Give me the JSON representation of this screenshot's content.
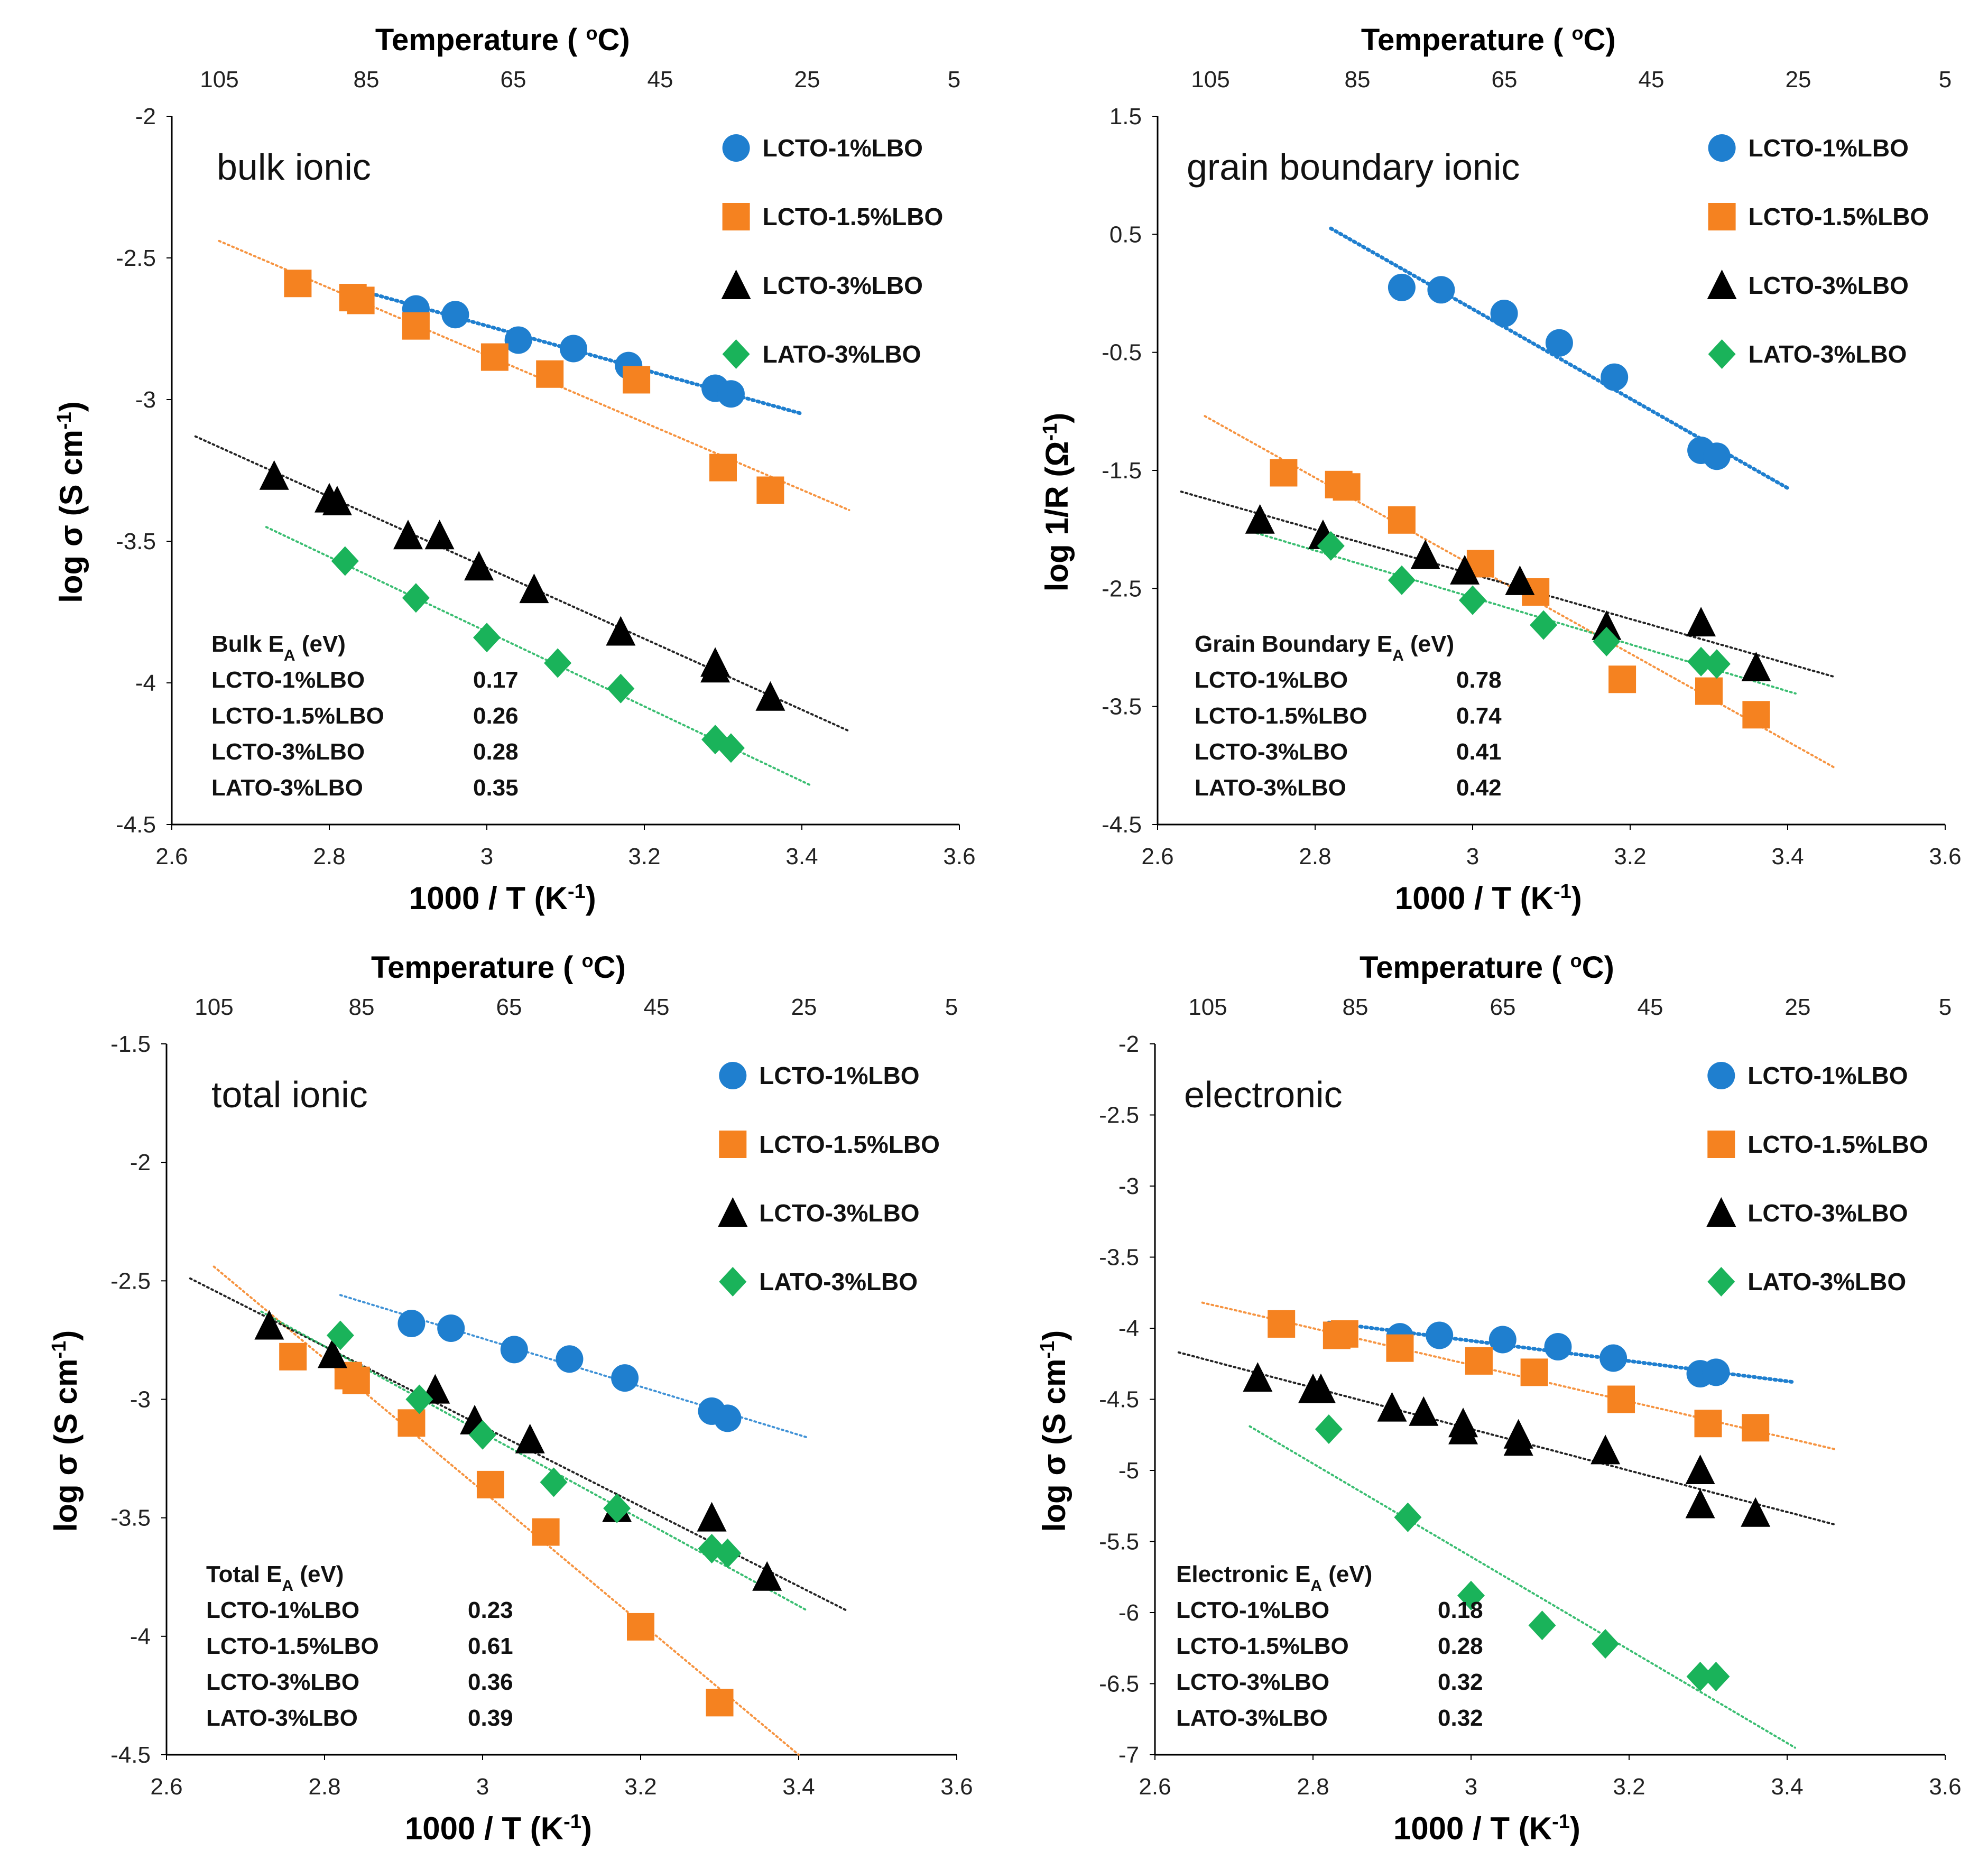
{
  "colors": {
    "LCTO-1%LBO": "#1f7fcf",
    "LCTO-1.5%LBO": "#f58220",
    "LCTO-3%LBO": "#000000",
    "LATO-3%LBO": "#1ab35a",
    "axis": "#000000"
  },
  "chart_data": [
    {
      "type": "scatter",
      "panel_label": "bulk ionic",
      "xlabel": "1000 / T (K",
      "xlabel_sup": "-1",
      "xlabel_close": ")",
      "ylabel": "log σ (S cm",
      "ylabel_sup": "-1",
      "ylabel_close": ")",
      "toplabel": "Temperature ( ",
      "toplabel_sup": "o",
      "toplabel_close": "C)",
      "xlim": [
        2.6,
        3.6
      ],
      "ylim": [
        -4.5,
        -2
      ],
      "xticks": [
        "2.6",
        "2.8",
        "3",
        "3.2",
        "3.4",
        "3.6"
      ],
      "yticks": [
        "-4.5",
        "-4",
        "-3.5",
        "-3",
        "-2.5",
        "-2"
      ],
      "top_ticks": [
        "105",
        "85",
        "65",
        "45",
        "25",
        "5"
      ],
      "series": [
        {
          "name": "LCTO-1%LBO",
          "marker": "circle",
          "points": [
            [
              2.91,
              -2.68
            ],
            [
              2.96,
              -2.7
            ],
            [
              3.04,
              -2.79
            ],
            [
              3.11,
              -2.82
            ],
            [
              3.18,
              -2.88
            ],
            [
              3.29,
              -2.96
            ],
            [
              3.31,
              -2.98
            ]
          ],
          "fit": [
            [
              2.82,
              -2.6
            ],
            [
              3.4,
              -3.05
            ]
          ],
          "fit_style": "dense"
        },
        {
          "name": "LCTO-1.5%LBO",
          "marker": "square",
          "points": [
            [
              2.76,
              -2.59
            ],
            [
              2.83,
              -2.64
            ],
            [
              2.84,
              -2.65
            ],
            [
              2.91,
              -2.74
            ],
            [
              3.01,
              -2.85
            ],
            [
              3.08,
              -2.91
            ],
            [
              3.19,
              -2.93
            ],
            [
              3.3,
              -3.24
            ],
            [
              3.36,
              -3.32
            ]
          ],
          "fit": [
            [
              2.66,
              -2.44
            ],
            [
              3.46,
              -3.39
            ]
          ],
          "fit_style": "light"
        },
        {
          "name": "LCTO-3%LBO",
          "marker": "triangle",
          "points": [
            [
              2.73,
              -3.27
            ],
            [
              2.8,
              -3.35
            ],
            [
              2.81,
              -3.36
            ],
            [
              2.9,
              -3.48
            ],
            [
              2.94,
              -3.48
            ],
            [
              2.99,
              -3.59
            ],
            [
              3.06,
              -3.67
            ],
            [
              3.17,
              -3.82
            ],
            [
              3.29,
              -3.93
            ],
            [
              3.29,
              -3.95
            ],
            [
              3.36,
              -4.05
            ]
          ],
          "fit": [
            [
              2.63,
              -3.13
            ],
            [
              3.46,
              -4.17
            ]
          ],
          "fit_style": "light"
        },
        {
          "name": "LATO-3%LBO",
          "marker": "diamond",
          "points": [
            [
              2.82,
              -3.57
            ],
            [
              2.91,
              -3.7
            ],
            [
              3.0,
              -3.84
            ],
            [
              3.09,
              -3.93
            ],
            [
              3.17,
              -4.02
            ],
            [
              3.29,
              -4.2
            ],
            [
              3.31,
              -4.23
            ]
          ],
          "fit": [
            [
              2.72,
              -3.45
            ],
            [
              3.41,
              -4.36
            ]
          ],
          "fit_style": "light"
        }
      ],
      "ea_table": {
        "header": "Bulk E",
        "header_sub": "A",
        "header_unit": " (eV)",
        "rows": [
          {
            "name": "LCTO-1%LBO",
            "value": "0.17"
          },
          {
            "name": "LCTO-1.5%LBO",
            "value": "0.26"
          },
          {
            "name": "LCTO-3%LBO",
            "value": "0.28"
          },
          {
            "name": "LATO-3%LBO",
            "value": "0.35"
          }
        ]
      }
    },
    {
      "type": "scatter",
      "panel_label": "grain boundary ionic",
      "xlabel": "1000 / T (K",
      "xlabel_sup": "-1",
      "xlabel_close": ")",
      "ylabel": "log 1/R (Ω",
      "ylabel_sup": "-1",
      "ylabel_close": ")",
      "toplabel": "Temperature ( ",
      "toplabel_sup": "o",
      "toplabel_close": "C)",
      "xlim": [
        2.6,
        3.6
      ],
      "ylim": [
        -4.5,
        1.5
      ],
      "xticks": [
        "2.6",
        "2.8",
        "3",
        "3.2",
        "3.4",
        "3.6"
      ],
      "yticks": [
        "-4.5",
        "-3.5",
        "-2.5",
        "-1.5",
        "-0.5",
        "0.5",
        "1.5"
      ],
      "top_ticks": [
        "105",
        "85",
        "65",
        "45",
        "25",
        "5"
      ],
      "series": [
        {
          "name": "LCTO-1%LBO",
          "marker": "circle",
          "points": [
            [
              2.91,
              0.05
            ],
            [
              2.96,
              0.03
            ],
            [
              3.04,
              -0.17
            ],
            [
              3.11,
              -0.42
            ],
            [
              3.18,
              -0.71
            ],
            [
              3.29,
              -1.33
            ],
            [
              3.31,
              -1.38
            ]
          ],
          "fit": [
            [
              2.82,
              0.55
            ],
            [
              3.4,
              -1.65
            ]
          ],
          "fit_style": "dense"
        },
        {
          "name": "LCTO-1.5%LBO",
          "marker": "square",
          "points": [
            [
              2.76,
              -1.52
            ],
            [
              2.83,
              -1.62
            ],
            [
              2.84,
              -1.64
            ],
            [
              2.91,
              -1.92
            ],
            [
              3.01,
              -2.29
            ],
            [
              3.08,
              -2.53
            ],
            [
              3.19,
              -3.27
            ],
            [
              3.3,
              -3.37
            ],
            [
              3.36,
              -3.57
            ]
          ],
          "fit": [
            [
              2.66,
              -1.04
            ],
            [
              3.46,
              -4.02
            ]
          ],
          "fit_style": "light"
        },
        {
          "name": "LCTO-3%LBO",
          "marker": "triangle",
          "points": [
            [
              2.73,
              -1.92
            ],
            [
              2.81,
              -2.05
            ],
            [
              2.94,
              -2.22
            ],
            [
              2.99,
              -2.35
            ],
            [
              3.06,
              -2.44
            ],
            [
              3.17,
              -2.82
            ],
            [
              3.29,
              -2.79
            ],
            [
              3.36,
              -3.17
            ]
          ],
          "fit": [
            [
              2.63,
              -1.68
            ],
            [
              3.46,
              -3.25
            ]
          ],
          "fit_style": "light"
        },
        {
          "name": "LATO-3%LBO",
          "marker": "diamond",
          "points": [
            [
              2.82,
              -2.14
            ],
            [
              2.91,
              -2.43
            ],
            [
              3.0,
              -2.6
            ],
            [
              3.09,
              -2.81
            ],
            [
              3.17,
              -2.95
            ],
            [
              3.29,
              -3.12
            ],
            [
              3.31,
              -3.14
            ]
          ],
          "fit": [
            [
              2.72,
              -2.02
            ],
            [
              3.41,
              -3.39
            ]
          ],
          "fit_style": "light"
        }
      ],
      "ea_table": {
        "header": "Grain Boundary E",
        "header_sub": "A",
        "header_unit": " (eV)",
        "rows": [
          {
            "name": "LCTO-1%LBO",
            "value": "0.78"
          },
          {
            "name": "LCTO-1.5%LBO",
            "value": "0.74"
          },
          {
            "name": "LCTO-3%LBO",
            "value": "0.41"
          },
          {
            "name": "LATO-3%LBO",
            "value": "0.42"
          }
        ]
      }
    },
    {
      "type": "scatter",
      "panel_label": "total ionic",
      "xlabel": "1000 / T (K",
      "xlabel_sup": "-1",
      "xlabel_close": ")",
      "ylabel": "log σ (S cm",
      "ylabel_sup": "-1",
      "ylabel_close": ")",
      "toplabel": "Temperature ( ",
      "toplabel_sup": "o",
      "toplabel_close": "C)",
      "xlim": [
        2.6,
        3.6
      ],
      "ylim": [
        -4.5,
        -1.5
      ],
      "xticks": [
        "2.6",
        "2.8",
        "3",
        "3.2",
        "3.4",
        "3.6"
      ],
      "yticks": [
        "-4.5",
        "-4",
        "-3.5",
        "-3",
        "-2.5",
        "-2",
        "-1.5"
      ],
      "top_ticks": [
        "105",
        "85",
        "65",
        "45",
        "25",
        "5"
      ],
      "series": [
        {
          "name": "LCTO-1%LBO",
          "marker": "circle",
          "points": [
            [
              2.91,
              -2.68
            ],
            [
              2.96,
              -2.7
            ],
            [
              3.04,
              -2.79
            ],
            [
              3.11,
              -2.83
            ],
            [
              3.18,
              -2.91
            ],
            [
              3.29,
              -3.05
            ],
            [
              3.31,
              -3.08
            ]
          ],
          "fit": [
            [
              2.82,
              -2.56
            ],
            [
              3.41,
              -3.16
            ]
          ],
          "fit_style": "light"
        },
        {
          "name": "LCTO-1.5%LBO",
          "marker": "square",
          "points": [
            [
              2.76,
              -2.82
            ],
            [
              2.83,
              -2.9
            ],
            [
              2.84,
              -2.92
            ],
            [
              2.91,
              -3.1
            ],
            [
              3.01,
              -3.36
            ],
            [
              3.08,
              -3.56
            ],
            [
              3.2,
              -3.96
            ],
            [
              3.3,
              -4.28
            ]
          ],
          "fit": [
            [
              2.66,
              -2.44
            ],
            [
              3.4,
              -4.5
            ]
          ],
          "fit_style": "light"
        },
        {
          "name": "LCTO-3%LBO",
          "marker": "triangle",
          "points": [
            [
              2.73,
              -2.69
            ],
            [
              2.81,
              -2.81
            ],
            [
              2.94,
              -2.96
            ],
            [
              2.99,
              -3.09
            ],
            [
              3.06,
              -3.17
            ],
            [
              3.17,
              -3.46
            ],
            [
              3.29,
              -3.5
            ],
            [
              3.36,
              -3.75
            ]
          ],
          "fit": [
            [
              2.63,
              -2.49
            ],
            [
              3.46,
              -3.89
            ]
          ],
          "fit_style": "light"
        },
        {
          "name": "LATO-3%LBO",
          "marker": "diamond",
          "points": [
            [
              2.82,
              -2.73
            ],
            [
              2.92,
              -3.0
            ],
            [
              3.0,
              -3.15
            ],
            [
              3.09,
              -3.35
            ],
            [
              3.17,
              -3.46
            ],
            [
              3.29,
              -3.63
            ],
            [
              3.31,
              -3.65
            ]
          ],
          "fit": [
            [
              2.72,
              -2.63
            ],
            [
              3.41,
              -3.89
            ]
          ],
          "fit_style": "light"
        }
      ],
      "ea_table": {
        "header": "Total E",
        "header_sub": "A",
        "header_unit": " (eV)",
        "rows": [
          {
            "name": "LCTO-1%LBO",
            "value": "0.23"
          },
          {
            "name": "LCTO-1.5%LBO",
            "value": "0.61"
          },
          {
            "name": "LCTO-3%LBO",
            "value": "0.36"
          },
          {
            "name": "LATO-3%LBO",
            "value": "0.39"
          }
        ]
      }
    },
    {
      "type": "scatter",
      "panel_label": "electronic",
      "xlabel": "1000 / T (K",
      "xlabel_sup": "-1",
      "xlabel_close": ")",
      "ylabel": "log σ (S cm",
      "ylabel_sup": "-1",
      "ylabel_close": ")",
      "toplabel": "Temperature ( ",
      "toplabel_sup": "o",
      "toplabel_close": "C)",
      "xlim": [
        2.6,
        3.6
      ],
      "ylim": [
        -7,
        -2
      ],
      "xticks": [
        "2.6",
        "2.8",
        "3",
        "3.2",
        "3.4",
        "3.6"
      ],
      "yticks": [
        "-7",
        "-6.5",
        "-6",
        "-5.5",
        "-5",
        "-4.5",
        "-4",
        "-3.5",
        "-3",
        "-2.5",
        "-2"
      ],
      "top_ticks": [
        "105",
        "85",
        "65",
        "45",
        "25",
        "5"
      ],
      "series": [
        {
          "name": "LCTO-1%LBO",
          "marker": "circle",
          "points": [
            [
              2.91,
              -4.06
            ],
            [
              2.96,
              -4.05
            ],
            [
              3.04,
              -4.08
            ],
            [
              3.11,
              -4.13
            ],
            [
              3.18,
              -4.21
            ],
            [
              3.29,
              -4.32
            ],
            [
              3.31,
              -4.31
            ]
          ],
          "fit": [
            [
              2.82,
              -3.96
            ],
            [
              3.41,
              -4.38
            ]
          ],
          "fit_style": "dense"
        },
        {
          "name": "LCTO-1.5%LBO",
          "marker": "square",
          "points": [
            [
              2.76,
              -3.97
            ],
            [
              2.83,
              -4.05
            ],
            [
              2.84,
              -4.04
            ],
            [
              2.91,
              -4.14
            ],
            [
              3.01,
              -4.23
            ],
            [
              3.08,
              -4.31
            ],
            [
              3.19,
              -4.5
            ],
            [
              3.3,
              -4.67
            ],
            [
              3.36,
              -4.7
            ]
          ],
          "fit": [
            [
              2.66,
              -3.82
            ],
            [
              3.46,
              -4.85
            ]
          ],
          "fit_style": "light"
        },
        {
          "name": "LCTO-3%LBO",
          "marker": "triangle",
          "points": [
            [
              2.73,
              -4.35
            ],
            [
              2.8,
              -4.43
            ],
            [
              2.81,
              -4.43
            ],
            [
              2.9,
              -4.56
            ],
            [
              2.94,
              -4.59
            ],
            [
              2.99,
              -4.67
            ],
            [
              2.99,
              -4.72
            ],
            [
              3.06,
              -4.75
            ],
            [
              3.06,
              -4.8
            ],
            [
              3.17,
              -4.86
            ],
            [
              3.29,
              -5.0
            ],
            [
              3.29,
              -5.24
            ],
            [
              3.36,
              -5.3
            ]
          ],
          "fit": [
            [
              2.63,
              -4.17
            ],
            [
              3.46,
              -5.38
            ]
          ],
          "fit_style": "light"
        },
        {
          "name": "LATO-3%LBO",
          "marker": "diamond",
          "points": [
            [
              2.82,
              -4.71
            ],
            [
              2.92,
              -5.33
            ],
            [
              3.0,
              -5.88
            ],
            [
              3.09,
              -6.09
            ],
            [
              3.17,
              -6.22
            ],
            [
              3.29,
              -6.45
            ],
            [
              3.31,
              -6.45
            ]
          ],
          "fit": [
            [
              2.72,
              -4.69
            ],
            [
              3.41,
              -6.95
            ]
          ],
          "fit_style": "light"
        }
      ],
      "ea_table": {
        "header": "Electronic E",
        "header_sub": "A",
        "header_unit": " (eV)",
        "rows": [
          {
            "name": "LCTO-1%LBO",
            "value": "0.18"
          },
          {
            "name": "LCTO-1.5%LBO",
            "value": "0.28"
          },
          {
            "name": "LCTO-3%LBO",
            "value": "0.32"
          },
          {
            "name": "LATO-3%LBO",
            "value": "0.32"
          }
        ]
      }
    }
  ]
}
